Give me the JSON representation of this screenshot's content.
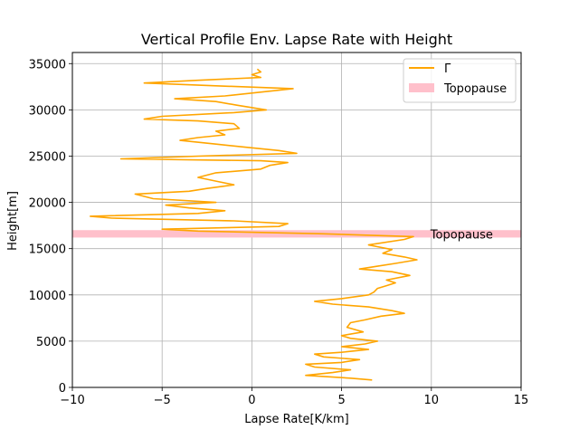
{
  "chart_data": {
    "type": "line",
    "title": "Vertical Profile Env. Lapse Rate with Height",
    "xlabel": "Lapse Rate[K/km]",
    "ylabel": "Height[m]",
    "xlim": [
      -10,
      15
    ],
    "ylim": [
      0,
      36200
    ],
    "xticks": [
      -10,
      -5,
      0,
      5,
      10,
      15
    ],
    "xtick_labels": [
      "−10",
      "−5",
      "0",
      "5",
      "10",
      "15"
    ],
    "yticks": [
      0,
      5000,
      10000,
      15000,
      20000,
      25000,
      30000,
      35000
    ],
    "grid": true,
    "legend_position": "top-right",
    "series": [
      {
        "name": "Γ",
        "color": "#FFA500",
        "points": [
          [
            6.7,
            800
          ],
          [
            5.5,
            1000
          ],
          [
            3.0,
            1300
          ],
          [
            4.5,
            1600
          ],
          [
            5.5,
            1900
          ],
          [
            3.5,
            2200
          ],
          [
            3.0,
            2500
          ],
          [
            5.0,
            2700
          ],
          [
            6.0,
            3000
          ],
          [
            4.0,
            3300
          ],
          [
            3.5,
            3600
          ],
          [
            5.0,
            3800
          ],
          [
            6.5,
            4100
          ],
          [
            5.0,
            4400
          ],
          [
            6.3,
            4700
          ],
          [
            7.0,
            5000
          ],
          [
            5.5,
            5300
          ],
          [
            5.0,
            5600
          ],
          [
            6.2,
            6000
          ],
          [
            5.3,
            6500
          ],
          [
            5.5,
            7000
          ],
          [
            6.3,
            7300
          ],
          [
            7.2,
            7700
          ],
          [
            8.5,
            8000
          ],
          [
            7.8,
            8300
          ],
          [
            6.5,
            8700
          ],
          [
            4.5,
            9000
          ],
          [
            3.5,
            9300
          ],
          [
            5.0,
            9600
          ],
          [
            6.5,
            10000
          ],
          [
            6.8,
            10300
          ],
          [
            7.0,
            10700
          ],
          [
            7.5,
            11000
          ],
          [
            8.0,
            11300
          ],
          [
            7.5,
            11600
          ],
          [
            8.8,
            12100
          ],
          [
            7.8,
            12500
          ],
          [
            6.0,
            12800
          ],
          [
            7.0,
            13100
          ],
          [
            8.0,
            13400
          ],
          [
            9.2,
            13800
          ],
          [
            8.5,
            14100
          ],
          [
            7.3,
            14500
          ],
          [
            7.8,
            14900
          ],
          [
            6.5,
            15400
          ],
          [
            8.5,
            16000
          ],
          [
            9.0,
            16300
          ],
          [
            4.0,
            16600
          ],
          [
            -3.0,
            16900
          ],
          [
            -5.0,
            17100
          ],
          [
            1.5,
            17400
          ],
          [
            2.0,
            17700
          ],
          [
            -1.0,
            18000
          ],
          [
            -7.8,
            18300
          ],
          [
            -9.0,
            18500
          ],
          [
            -3.0,
            18800
          ],
          [
            -1.5,
            19100
          ],
          [
            -3.5,
            19400
          ],
          [
            -4.8,
            19700
          ],
          [
            -2.0,
            20000
          ],
          [
            -5.5,
            20400
          ],
          [
            -6.5,
            20900
          ],
          [
            -3.5,
            21200
          ],
          [
            -2.5,
            21500
          ],
          [
            -1.0,
            21900
          ],
          [
            -2.0,
            22300
          ],
          [
            -3.0,
            22700
          ],
          [
            -2.0,
            23200
          ],
          [
            0.5,
            23600
          ],
          [
            1.0,
            24000
          ],
          [
            2.0,
            24300
          ],
          [
            0.5,
            24500
          ],
          [
            -7.3,
            24700
          ],
          [
            -3.0,
            25000
          ],
          [
            2.5,
            25300
          ],
          [
            1.5,
            25600
          ],
          [
            -0.5,
            26000
          ],
          [
            -2.0,
            26300
          ],
          [
            -4.0,
            26700
          ],
          [
            -3.0,
            27000
          ],
          [
            -1.5,
            27300
          ],
          [
            -2.0,
            27700
          ],
          [
            -0.7,
            28000
          ],
          [
            -1.0,
            28500
          ],
          [
            -3.0,
            28800
          ],
          [
            -6.0,
            29000
          ],
          [
            -5.0,
            29300
          ],
          [
            -1.0,
            29700
          ],
          [
            0.8,
            30000
          ],
          [
            -0.8,
            30500
          ],
          [
            -2.0,
            30900
          ],
          [
            -4.3,
            31200
          ],
          [
            -1.5,
            31500
          ],
          [
            2.3,
            32300
          ],
          [
            -2.0,
            32600
          ],
          [
            -6.0,
            32900
          ],
          [
            -3.0,
            33200
          ],
          [
            0.5,
            33500
          ],
          [
            0.0,
            33800
          ],
          [
            0.5,
            34100
          ],
          [
            0.3,
            34400
          ]
        ]
      }
    ],
    "bands": [
      {
        "name": "Topopause",
        "y0": 16200,
        "y1": 17000,
        "color": "#FFC0CB"
      }
    ],
    "annotations": [
      {
        "text": "Topopause",
        "x": 10,
        "y": 16600
      }
    ]
  }
}
